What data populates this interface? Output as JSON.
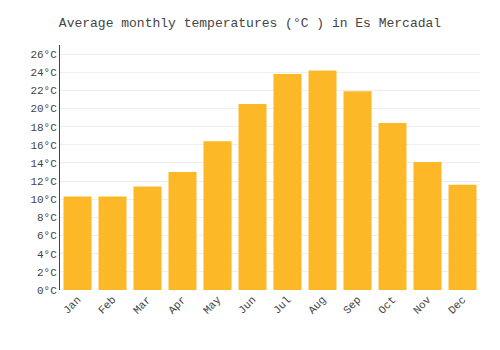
{
  "chart_data": {
    "type": "bar",
    "title": "Average monthly temperatures (°C ) in Es Mercadal",
    "categories": [
      "Jan",
      "Feb",
      "Mar",
      "Apr",
      "May",
      "Jun",
      "Jul",
      "Aug",
      "Sep",
      "Oct",
      "Nov",
      "Dec"
    ],
    "values": [
      10.3,
      10.3,
      11.4,
      13.0,
      16.4,
      20.5,
      23.8,
      24.2,
      21.9,
      18.4,
      14.1,
      11.6
    ],
    "color": "#FDB827",
    "ylim": [
      0,
      27
    ],
    "yticks": [
      {
        "value": 0,
        "label": "0°C"
      },
      {
        "value": 2,
        "label": "2°C"
      },
      {
        "value": 4,
        "label": "4°C"
      },
      {
        "value": 6,
        "label": "6°C"
      },
      {
        "value": 8,
        "label": "8°C"
      },
      {
        "value": 10,
        "label": "10°C"
      },
      {
        "value": 12,
        "label": "12°C"
      },
      {
        "value": 14,
        "label": "14°C"
      },
      {
        "value": 16,
        "label": "16°C"
      },
      {
        "value": 18,
        "label": "18°C"
      },
      {
        "value": 20,
        "label": "20°C"
      },
      {
        "value": 22,
        "label": "22°C"
      },
      {
        "value": 24,
        "label": "24°C"
      },
      {
        "value": 26,
        "label": "26°C"
      }
    ],
    "grid": true
  }
}
